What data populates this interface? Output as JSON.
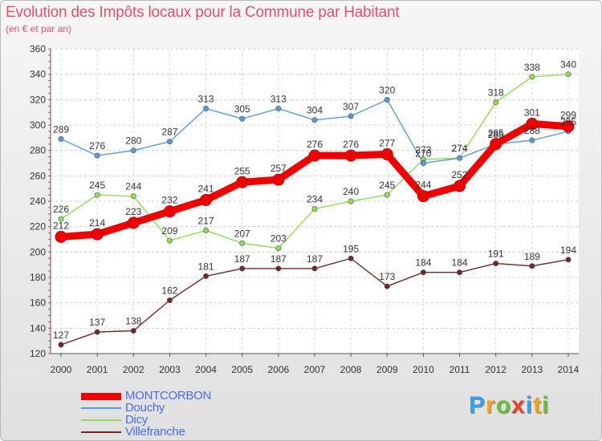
{
  "title": "Evolution des Impôts locaux pour la Commune par Habitant",
  "subtitle": "(en € et par an)",
  "logo": {
    "text": "Proxiti",
    "letters": [
      {
        "ch": "P",
        "color": "#3aa0e8"
      },
      {
        "ch": "r",
        "color": "#f2a31b"
      },
      {
        "ch": "o",
        "color": "#6bbf3a"
      },
      {
        "ch": "x",
        "color": "#e8442c"
      },
      {
        "ch": "i",
        "color": "#3aa0e8"
      },
      {
        "ch": "t",
        "color": "#f2a31b"
      },
      {
        "ch": "i",
        "color": "#6bbf3a"
      }
    ]
  },
  "chart_data": {
    "type": "line",
    "title": "Evolution des Impôts locaux pour la Commune par Habitant",
    "ylabel": "(en € et par an)",
    "xlabel": "",
    "x": [
      "2000",
      "2001",
      "2002",
      "2003",
      "2004",
      "2005",
      "2006",
      "2007",
      "2008",
      "2009",
      "2010",
      "2011",
      "2012",
      "2013",
      "2014"
    ],
    "ylim": [
      120,
      360
    ],
    "yticks": [
      "120",
      "140",
      "160",
      "180",
      "200",
      "220",
      "240",
      "260",
      "280",
      "300",
      "320",
      "340",
      "360"
    ],
    "grid": true,
    "legend_position": "bottom-left",
    "series": [
      {
        "name": "MONTCORBON",
        "color": "#ee0000",
        "values": [
          212,
          214,
          223,
          232,
          241,
          255,
          257,
          276,
          276,
          277,
          244,
          252,
          285,
          301,
          299
        ]
      },
      {
        "name": "Douchy",
        "color": "#5b9bd5",
        "values": [
          289,
          276,
          280,
          287,
          313,
          305,
          313,
          304,
          307,
          320,
          270,
          274,
          285,
          288,
          295
        ]
      },
      {
        "name": "Dicy",
        "color": "#8fdc5a",
        "values": [
          226,
          245,
          244,
          209,
          217,
          207,
          203,
          234,
          240,
          245,
          273,
          274,
          318,
          338,
          340
        ]
      },
      {
        "name": "Villefranche",
        "color": "#6b2a2a",
        "values": [
          127,
          137,
          138,
          162,
          181,
          187,
          187,
          187,
          195,
          173,
          184,
          184,
          191,
          189,
          194
        ]
      }
    ]
  }
}
